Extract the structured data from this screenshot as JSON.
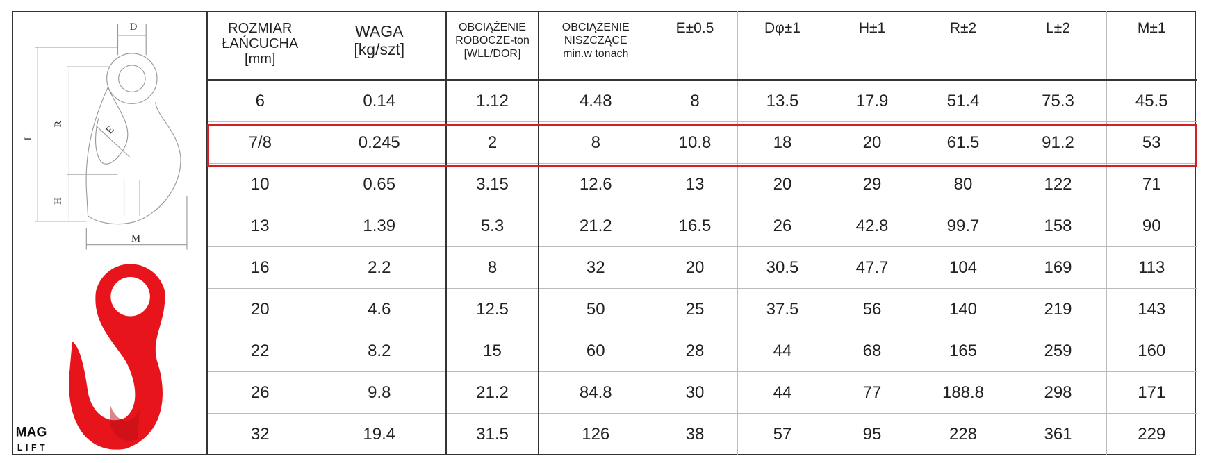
{
  "diagram": {
    "labels": {
      "D": "D",
      "R": "R",
      "L": "L",
      "E": "E",
      "H": "H",
      "M": "M"
    },
    "logo": {
      "top": "MAG",
      "bottom": "LIFT"
    }
  },
  "table": {
    "header": [
      [
        "ROZMIAR",
        "ŁAŃCUCHA",
        "[mm]"
      ],
      [
        "WAGA",
        "[kg/szt]"
      ],
      [
        "OBCIĄŻENIE",
        "ROBOCZE-ton",
        "[WLL/DOR]"
      ],
      [
        "OBCIĄŻENIE",
        "NISZCZĄCE",
        "min.w tonach"
      ],
      [
        "E±0.5"
      ],
      [
        "Dφ±1"
      ],
      [
        "H±1"
      ],
      [
        "R±2"
      ],
      [
        "L±2"
      ],
      [
        "M±1"
      ]
    ],
    "rows": [
      [
        "6",
        "0.14",
        "1.12",
        "4.48",
        "8",
        "13.5",
        "17.9",
        "51.4",
        "75.3",
        "45.5"
      ],
      [
        "7/8",
        "0.245",
        "2",
        "8",
        "10.8",
        "18",
        "20",
        "61.5",
        "91.2",
        "53"
      ],
      [
        "10",
        "0.65",
        "3.15",
        "12.6",
        "13",
        "20",
        "29",
        "80",
        "122",
        "71"
      ],
      [
        "13",
        "1.39",
        "5.3",
        "21.2",
        "16.5",
        "26",
        "42.8",
        "99.7",
        "158",
        "90"
      ],
      [
        "16",
        "2.2",
        "8",
        "32",
        "20",
        "30.5",
        "47.7",
        "104",
        "169",
        "113"
      ],
      [
        "20",
        "4.6",
        "12.5",
        "50",
        "25",
        "37.5",
        "56",
        "140",
        "219",
        "143"
      ],
      [
        "22",
        "8.2",
        "15",
        "60",
        "28",
        "44",
        "68",
        "165",
        "259",
        "160"
      ],
      [
        "26",
        "9.8",
        "21.2",
        "84.8",
        "30",
        "44",
        "77",
        "188.8",
        "298",
        "171"
      ],
      [
        "32",
        "19.4",
        "31.5",
        "126",
        "38",
        "57",
        "95",
        "228",
        "361",
        "229"
      ]
    ]
  }
}
